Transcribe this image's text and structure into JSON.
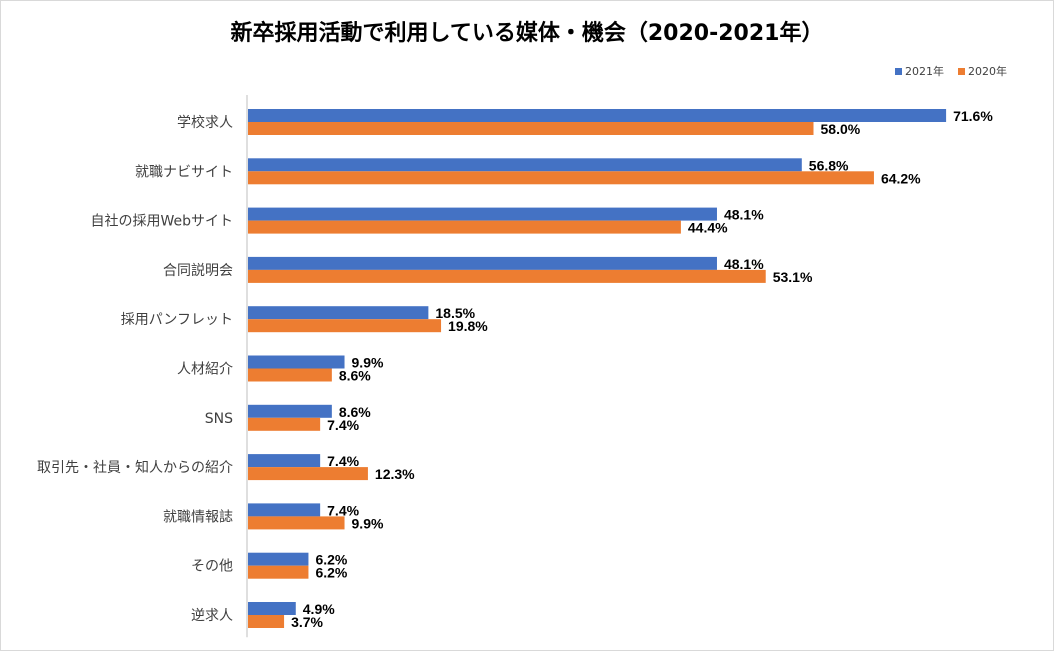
{
  "chart_data": {
    "type": "bar",
    "orientation": "horizontal",
    "title": "新卒採用活動で利用している媒体・機会（2020-2021年）",
    "categories": [
      "学校求人",
      "就職ナビサイト",
      "自社の採用Webサイト",
      "合同説明会",
      "採用パンフレット",
      "人材紹介",
      "SNS",
      "取引先・社員・知人からの紹介",
      "就職情報誌",
      "その他",
      "逆求人"
    ],
    "series": [
      {
        "name": "2021年",
        "color": "#4472c4",
        "values": [
          71.6,
          56.8,
          48.1,
          48.1,
          18.5,
          9.9,
          8.6,
          7.4,
          7.4,
          6.2,
          4.9
        ],
        "labels": [
          "71.6%",
          "56.8%",
          "48.1%",
          "48.1%",
          "18.5%",
          "9.9%",
          "8.6%",
          "7.4%",
          "7.4%",
          "6.2%",
          "4.9%"
        ]
      },
      {
        "name": "2020年",
        "color": "#ed7d31",
        "values": [
          58.0,
          64.2,
          44.4,
          53.1,
          19.8,
          8.6,
          7.4,
          12.3,
          9.9,
          6.2,
          3.7
        ],
        "labels": [
          "58.0%",
          "64.2%",
          "44.4%",
          "53.1%",
          "19.8%",
          "8.6%",
          "7.4%",
          "12.3%",
          "9.9%",
          "6.2%",
          "3.7%"
        ]
      }
    ],
    "xlim": [
      0,
      100
    ],
    "value_unit": "%",
    "grid": false,
    "legend_position": "top-right",
    "axis_line_color": "#bfbfbf",
    "label_color": "#404040"
  }
}
